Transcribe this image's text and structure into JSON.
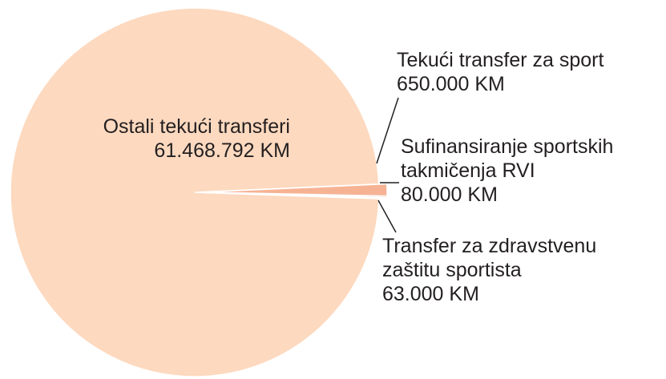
{
  "chart_data": {
    "type": "pie",
    "categories": [
      "Ostali tekući transferi",
      "Tekući transfer za sport",
      "Sufinansiranje sportskih takmičenja RVI",
      "Transfer za zdravstvenu zaštitu sportista"
    ],
    "values": [
      61468792,
      650000,
      80000,
      63000
    ],
    "value_labels": [
      "61.468.792 KM",
      "650.000 KM",
      "80.000 KM",
      "63.000 KM"
    ],
    "colors": [
      "#fdd9bf",
      "#f6b394",
      "#f28a4c",
      "#ee7a35"
    ]
  }
}
